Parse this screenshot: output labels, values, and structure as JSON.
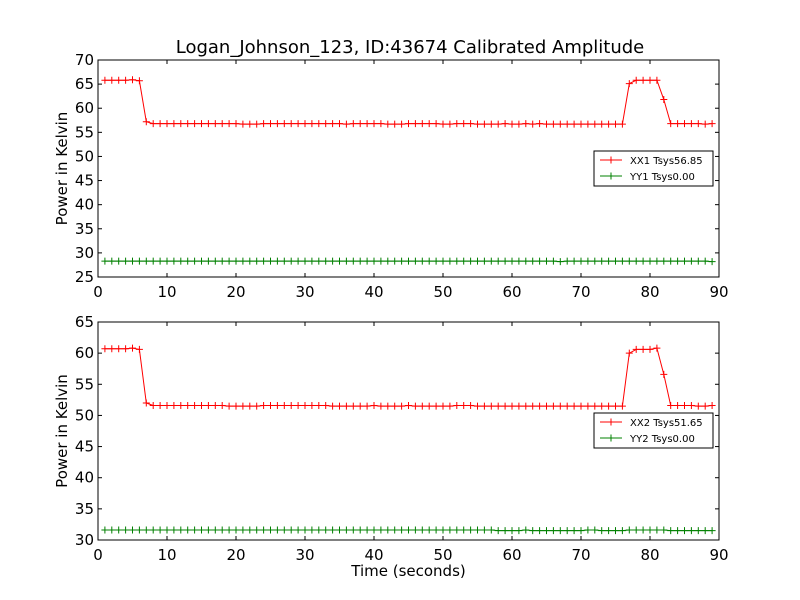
{
  "title": "Logan_Johnson_123, ID:43674 Calibrated Amplitude",
  "chart_data": [
    {
      "type": "line",
      "title": "Logan_Johnson_123, ID:43674 Calibrated Amplitude",
      "xlabel": "",
      "ylabel": "Power in Kelvin",
      "xlim": [
        0,
        90
      ],
      "ylim": [
        25,
        70
      ],
      "xticks": [
        0,
        10,
        20,
        30,
        40,
        50,
        60,
        70,
        80,
        90
      ],
      "yticks": [
        25,
        30,
        35,
        40,
        45,
        50,
        55,
        60,
        65,
        70
      ],
      "grid": false,
      "legend_position": "right",
      "marker": "+",
      "series": [
        {
          "name": "XX1 Tsys56.85",
          "color": "#ff0000",
          "x": [
            1,
            2,
            3,
            4,
            5,
            6,
            7,
            8,
            9,
            10,
            11,
            12,
            13,
            14,
            15,
            16,
            17,
            18,
            19,
            20,
            21,
            22,
            23,
            24,
            25,
            26,
            27,
            28,
            29,
            30,
            31,
            32,
            33,
            34,
            35,
            36,
            37,
            38,
            39,
            40,
            41,
            42,
            43,
            44,
            45,
            46,
            47,
            48,
            49,
            50,
            51,
            52,
            53,
            54,
            55,
            56,
            57,
            58,
            59,
            60,
            61,
            62,
            63,
            64,
            65,
            66,
            67,
            68,
            69,
            70,
            71,
            72,
            73,
            74,
            75,
            76,
            77,
            78,
            79,
            80,
            81,
            82,
            83,
            84,
            85,
            86,
            87,
            88,
            89
          ],
          "y": [
            65.8,
            65.8,
            65.8,
            65.8,
            65.9,
            65.7,
            57.2,
            56.8,
            56.8,
            56.8,
            56.8,
            56.8,
            56.8,
            56.8,
            56.8,
            56.8,
            56.8,
            56.8,
            56.8,
            56.8,
            56.7,
            56.7,
            56.7,
            56.8,
            56.8,
            56.8,
            56.8,
            56.8,
            56.8,
            56.8,
            56.8,
            56.8,
            56.8,
            56.8,
            56.8,
            56.7,
            56.8,
            56.8,
            56.8,
            56.8,
            56.8,
            56.7,
            56.7,
            56.7,
            56.8,
            56.8,
            56.8,
            56.8,
            56.8,
            56.7,
            56.7,
            56.8,
            56.8,
            56.8,
            56.7,
            56.7,
            56.7,
            56.7,
            56.8,
            56.7,
            56.7,
            56.8,
            56.7,
            56.8,
            56.7,
            56.7,
            56.7,
            56.7,
            56.7,
            56.7,
            56.7,
            56.7,
            56.7,
            56.7,
            56.7,
            56.7,
            65.1,
            65.8,
            65.8,
            65.8,
            65.8,
            61.8,
            56.8,
            56.8,
            56.8,
            56.8,
            56.8,
            56.7,
            56.8
          ]
        },
        {
          "name": "YY1 Tsys0.00",
          "color": "#008000",
          "x": [
            1,
            2,
            3,
            4,
            5,
            6,
            7,
            8,
            9,
            10,
            11,
            12,
            13,
            14,
            15,
            16,
            17,
            18,
            19,
            20,
            21,
            22,
            23,
            24,
            25,
            26,
            27,
            28,
            29,
            30,
            31,
            32,
            33,
            34,
            35,
            36,
            37,
            38,
            39,
            40,
            41,
            42,
            43,
            44,
            45,
            46,
            47,
            48,
            49,
            50,
            51,
            52,
            53,
            54,
            55,
            56,
            57,
            58,
            59,
            60,
            61,
            62,
            63,
            64,
            65,
            66,
            67,
            68,
            69,
            70,
            71,
            72,
            73,
            74,
            75,
            76,
            77,
            78,
            79,
            80,
            81,
            82,
            83,
            84,
            85,
            86,
            87,
            88,
            89
          ],
          "y": [
            28.3,
            28.3,
            28.3,
            28.3,
            28.3,
            28.3,
            28.3,
            28.3,
            28.3,
            28.3,
            28.3,
            28.3,
            28.3,
            28.3,
            28.3,
            28.3,
            28.3,
            28.3,
            28.3,
            28.3,
            28.3,
            28.3,
            28.3,
            28.3,
            28.3,
            28.3,
            28.3,
            28.3,
            28.3,
            28.3,
            28.3,
            28.3,
            28.3,
            28.3,
            28.3,
            28.3,
            28.3,
            28.3,
            28.3,
            28.3,
            28.3,
            28.3,
            28.3,
            28.3,
            28.3,
            28.3,
            28.3,
            28.3,
            28.3,
            28.3,
            28.3,
            28.3,
            28.3,
            28.3,
            28.3,
            28.3,
            28.3,
            28.3,
            28.3,
            28.3,
            28.3,
            28.3,
            28.3,
            28.3,
            28.3,
            28.3,
            28.2,
            28.3,
            28.3,
            28.3,
            28.3,
            28.3,
            28.3,
            28.3,
            28.3,
            28.3,
            28.3,
            28.3,
            28.3,
            28.3,
            28.3,
            28.3,
            28.3,
            28.3,
            28.3,
            28.3,
            28.3,
            28.3,
            28.2
          ]
        }
      ]
    },
    {
      "type": "line",
      "title": "",
      "xlabel": "Time (seconds)",
      "ylabel": "Power in Kelvin",
      "xlim": [
        0,
        90
      ],
      "ylim": [
        30,
        65
      ],
      "xticks": [
        0,
        10,
        20,
        30,
        40,
        50,
        60,
        70,
        80,
        90
      ],
      "yticks": [
        30,
        35,
        40,
        45,
        50,
        55,
        60,
        65
      ],
      "grid": false,
      "legend_position": "right",
      "marker": "+",
      "series": [
        {
          "name": "XX2 Tsys51.65",
          "color": "#ff0000",
          "x": [
            1,
            2,
            3,
            4,
            5,
            6,
            7,
            8,
            9,
            10,
            11,
            12,
            13,
            14,
            15,
            16,
            17,
            18,
            19,
            20,
            21,
            22,
            23,
            24,
            25,
            26,
            27,
            28,
            29,
            30,
            31,
            32,
            33,
            34,
            35,
            36,
            37,
            38,
            39,
            40,
            41,
            42,
            43,
            44,
            45,
            46,
            47,
            48,
            49,
            50,
            51,
            52,
            53,
            54,
            55,
            56,
            57,
            58,
            59,
            60,
            61,
            62,
            63,
            64,
            65,
            66,
            67,
            68,
            69,
            70,
            71,
            72,
            73,
            74,
            75,
            76,
            77,
            78,
            79,
            80,
            81,
            82,
            83,
            84,
            85,
            86,
            87,
            88,
            89
          ],
          "y": [
            60.7,
            60.7,
            60.7,
            60.7,
            60.8,
            60.6,
            52.0,
            51.6,
            51.6,
            51.6,
            51.6,
            51.6,
            51.6,
            51.6,
            51.6,
            51.6,
            51.6,
            51.6,
            51.5,
            51.5,
            51.5,
            51.5,
            51.5,
            51.6,
            51.6,
            51.6,
            51.6,
            51.6,
            51.6,
            51.6,
            51.6,
            51.6,
            51.6,
            51.5,
            51.5,
            51.5,
            51.5,
            51.5,
            51.5,
            51.6,
            51.5,
            51.5,
            51.5,
            51.5,
            51.6,
            51.5,
            51.5,
            51.5,
            51.5,
            51.5,
            51.5,
            51.6,
            51.6,
            51.6,
            51.5,
            51.5,
            51.5,
            51.5,
            51.5,
            51.5,
            51.5,
            51.5,
            51.5,
            51.5,
            51.5,
            51.5,
            51.5,
            51.5,
            51.5,
            51.5,
            51.5,
            51.5,
            51.5,
            51.5,
            51.5,
            51.5,
            60.0,
            60.6,
            60.6,
            60.6,
            60.8,
            56.6,
            51.6,
            51.6,
            51.6,
            51.6,
            51.5,
            51.5,
            51.6
          ]
        },
        {
          "name": "YY2 Tsys0.00",
          "color": "#008000",
          "x": [
            1,
            2,
            3,
            4,
            5,
            6,
            7,
            8,
            9,
            10,
            11,
            12,
            13,
            14,
            15,
            16,
            17,
            18,
            19,
            20,
            21,
            22,
            23,
            24,
            25,
            26,
            27,
            28,
            29,
            30,
            31,
            32,
            33,
            34,
            35,
            36,
            37,
            38,
            39,
            40,
            41,
            42,
            43,
            44,
            45,
            46,
            47,
            48,
            49,
            50,
            51,
            52,
            53,
            54,
            55,
            56,
            57,
            58,
            59,
            60,
            61,
            62,
            63,
            64,
            65,
            66,
            67,
            68,
            69,
            70,
            71,
            72,
            73,
            74,
            75,
            76,
            77,
            78,
            79,
            80,
            81,
            82,
            83,
            84,
            85,
            86,
            87,
            88,
            89
          ],
          "y": [
            31.6,
            31.6,
            31.6,
            31.6,
            31.6,
            31.6,
            31.6,
            31.6,
            31.6,
            31.6,
            31.6,
            31.6,
            31.6,
            31.6,
            31.6,
            31.6,
            31.6,
            31.6,
            31.6,
            31.6,
            31.6,
            31.6,
            31.6,
            31.6,
            31.6,
            31.6,
            31.6,
            31.6,
            31.6,
            31.6,
            31.6,
            31.6,
            31.6,
            31.6,
            31.6,
            31.6,
            31.6,
            31.6,
            31.6,
            31.6,
            31.6,
            31.6,
            31.6,
            31.6,
            31.6,
            31.6,
            31.6,
            31.6,
            31.6,
            31.6,
            31.6,
            31.6,
            31.6,
            31.6,
            31.6,
            31.6,
            31.6,
            31.5,
            31.5,
            31.5,
            31.5,
            31.6,
            31.5,
            31.5,
            31.5,
            31.5,
            31.5,
            31.5,
            31.5,
            31.5,
            31.6,
            31.6,
            31.5,
            31.5,
            31.5,
            31.5,
            31.6,
            31.6,
            31.6,
            31.6,
            31.6,
            31.6,
            31.5,
            31.5,
            31.5,
            31.5,
            31.5,
            31.5,
            31.5
          ]
        }
      ]
    }
  ]
}
